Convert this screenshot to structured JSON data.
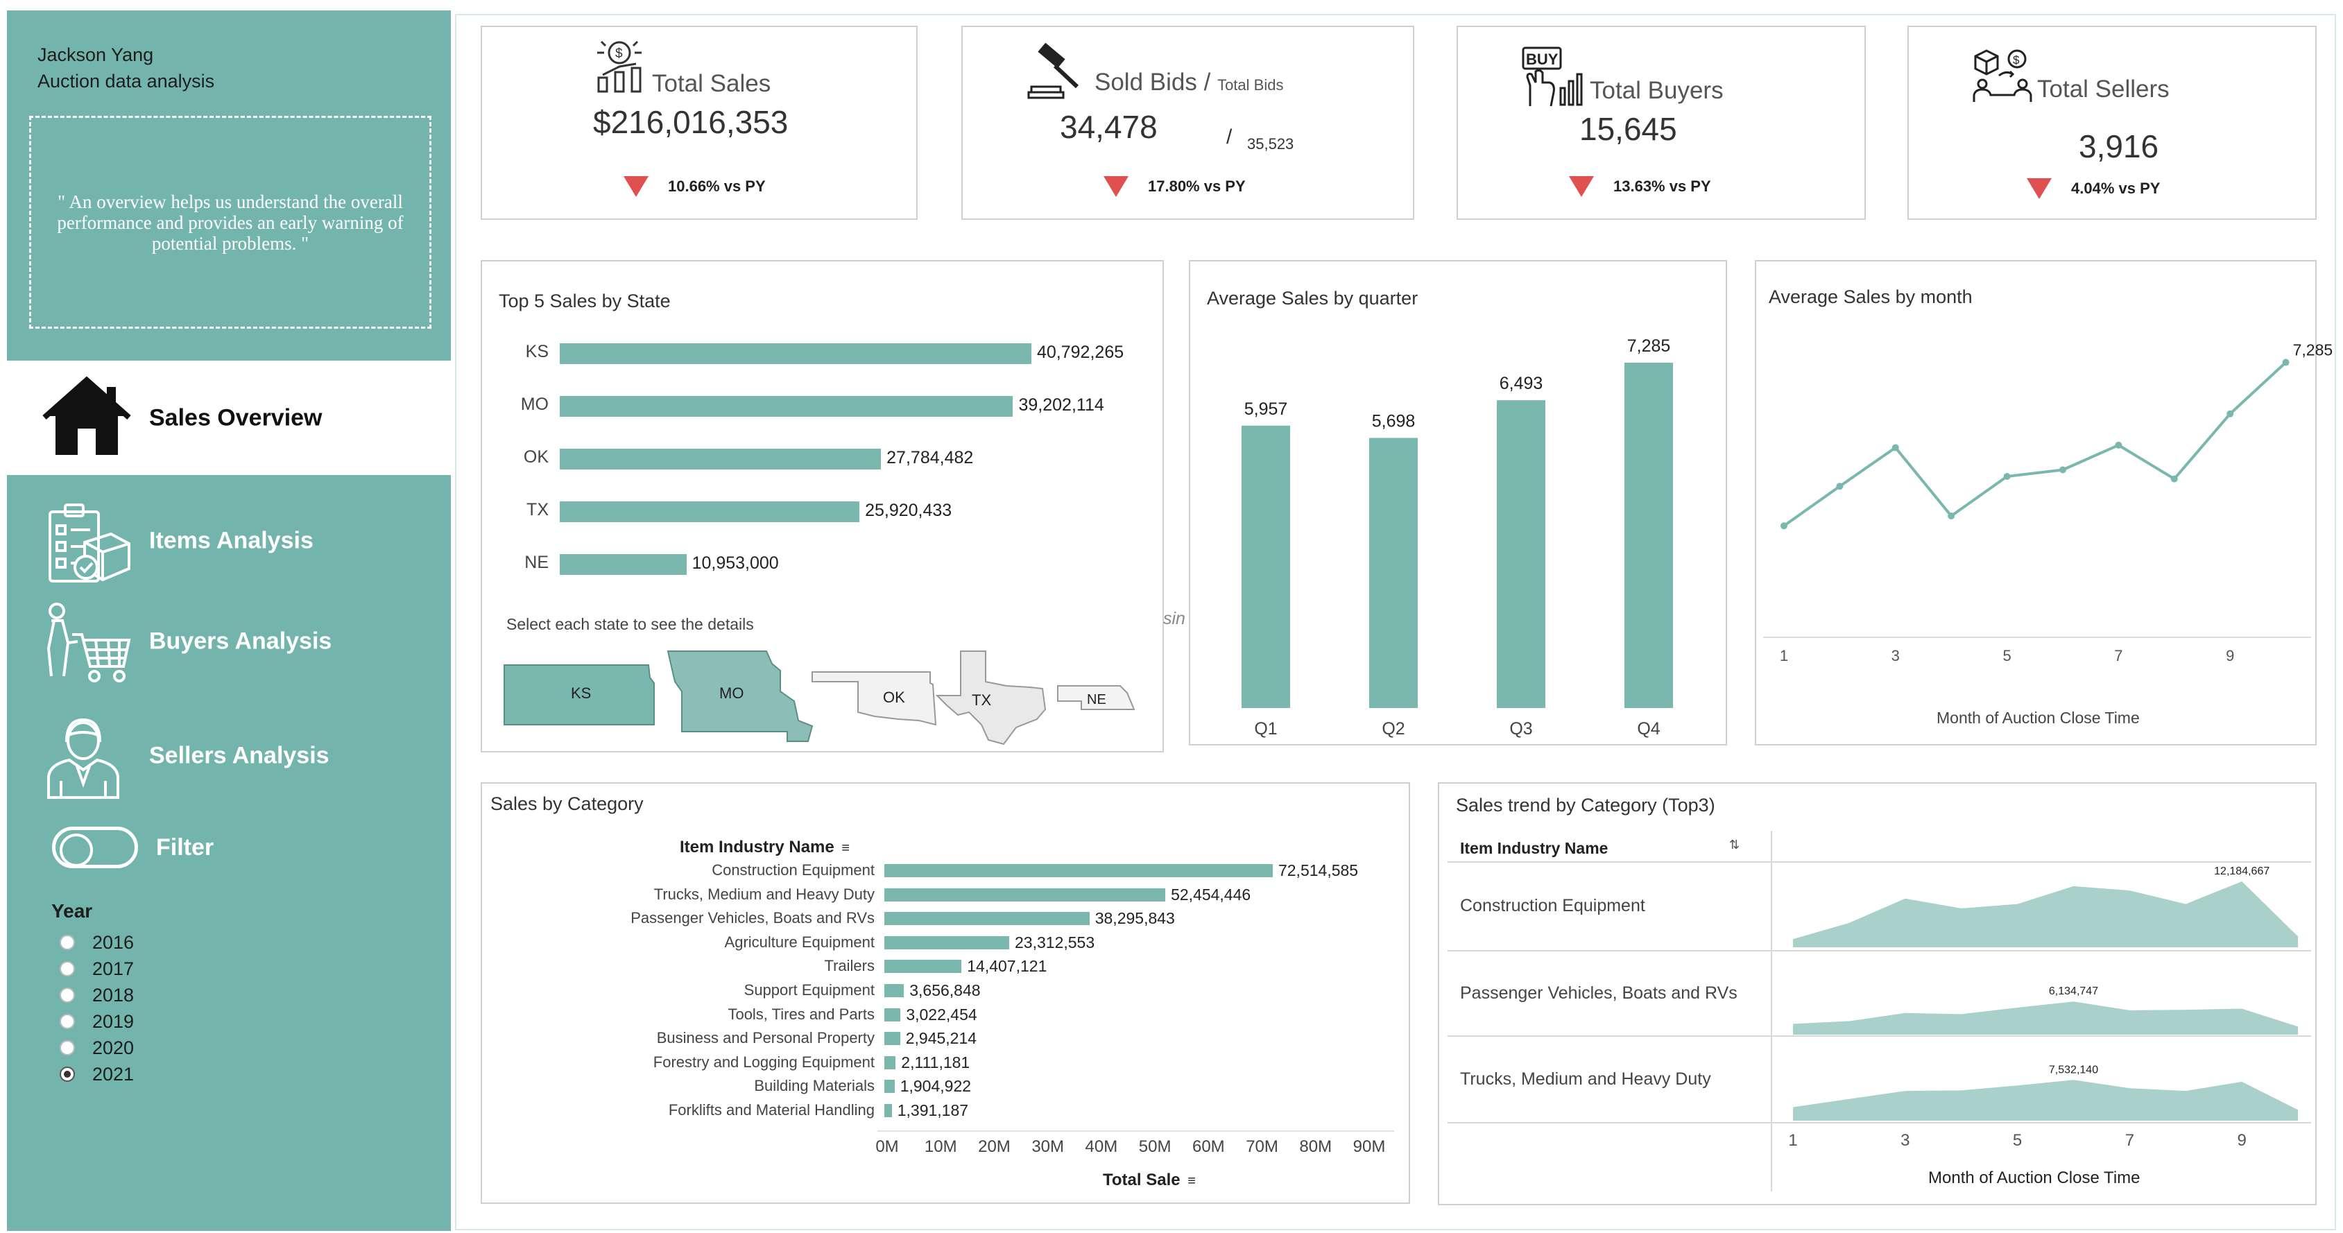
{
  "sidebar": {
    "author": "Jackson Yang",
    "subtitle": "Auction data analysis",
    "quote": "\" An overview helps us understand the overall performance and provides an early warning of potential problems. \"",
    "nav": [
      {
        "label": "Sales Overview",
        "icon": "house-icon",
        "active": true
      },
      {
        "label": "Items Analysis",
        "icon": "checklist-box-icon",
        "active": false
      },
      {
        "label": "Buyers Analysis",
        "icon": "shopping-cart-person-icon",
        "active": false
      },
      {
        "label": "Sellers Analysis",
        "icon": "seller-person-icon",
        "active": false
      }
    ],
    "filter_label": "Filter",
    "year_title": "Year",
    "years": [
      "2016",
      "2017",
      "2018",
      "2019",
      "2020",
      "2021"
    ],
    "selected_year": "2021"
  },
  "kpis": {
    "sales": {
      "title": "Total Sales",
      "value": "$216,016,353",
      "delta": "10.66% vs PY",
      "icon": "money-growth-icon"
    },
    "bids": {
      "title": "Sold Bids",
      "title_sep": " / ",
      "title_small": "Total Bids",
      "value": "34,478",
      "sub_value": "35,523",
      "sub_sep": "/",
      "delta": "17.80% vs PY",
      "icon": "gavel-icon"
    },
    "buyers": {
      "title": "Total Buyers",
      "value": "15,645",
      "delta": "13.63% vs PY",
      "icon": "buy-hand-icon"
    },
    "sellers": {
      "title": "Total Sellers",
      "value": "3,916",
      "delta": "4.04% vs PY",
      "icon": "seller-boxes-icon"
    },
    "delta_color": "#e05050"
  },
  "state_panel": {
    "title": "Top 5 Sales by State",
    "hint": "Select each state to see the details",
    "states": [
      {
        "code": "KS",
        "value": 40792265,
        "label": "40,792,265"
      },
      {
        "code": "MO",
        "value": 39202114,
        "label": "39,202,114"
      },
      {
        "code": "OK",
        "value": 27784482,
        "label": "27,784,482"
      },
      {
        "code": "TX",
        "value": 25920433,
        "label": "25,920,433"
      },
      {
        "code": "NE",
        "value": 10953000,
        "label": "10,953,000"
      }
    ],
    "edge_text": "sin"
  },
  "quarter_panel": {
    "title": "Average Sales by quarter",
    "categories": [
      "Q1",
      "Q2",
      "Q3",
      "Q4"
    ],
    "values": [
      5957,
      5698,
      6493,
      7285
    ],
    "labels": [
      "5,957",
      "5,698",
      "6,493",
      "7,285"
    ]
  },
  "month_panel": {
    "title": "Average Sales by month",
    "x": [
      1,
      2,
      3,
      4,
      5,
      6,
      7,
      8,
      9,
      10
    ],
    "values": [
      5300,
      5780,
      6250,
      5420,
      5900,
      5980,
      6280,
      5870,
      6660,
      7285
    ],
    "last_label": "7,285",
    "ticks": [
      "1",
      "3",
      "5",
      "7",
      "9"
    ],
    "xlabel": "Month of Auction Close Time"
  },
  "category_panel": {
    "title": "Sales by Category",
    "header": "Item Industry Name",
    "items": [
      {
        "name": "Construction Equipment",
        "value": 72514585,
        "label": "72,514,585"
      },
      {
        "name": "Trucks, Medium and Heavy Duty",
        "value": 52454446,
        "label": "52,454,446"
      },
      {
        "name": "Passenger Vehicles, Boats and RVs",
        "value": 38295843,
        "label": "38,295,843"
      },
      {
        "name": "Agriculture Equipment",
        "value": 23312553,
        "label": "23,312,553"
      },
      {
        "name": "Trailers",
        "value": 14407121,
        "label": "14,407,121"
      },
      {
        "name": "Support Equipment",
        "value": 3656848,
        "label": "3,656,848"
      },
      {
        "name": "Tools, Tires and Parts",
        "value": 3022454,
        "label": "3,022,454"
      },
      {
        "name": "Business and Personal Property",
        "value": 2945214,
        "label": "2,945,214"
      },
      {
        "name": "Forestry and Logging Equipment",
        "value": 2111181,
        "label": "2,111,181"
      },
      {
        "name": "Building Materials",
        "value": 1904922,
        "label": "1,904,922"
      },
      {
        "name": "Forklifts and Material Handling",
        "value": 1391187,
        "label": "1,391,187"
      }
    ],
    "axis_ticks": [
      "0M",
      "10M",
      "20M",
      "30M",
      "40M",
      "50M",
      "60M",
      "70M",
      "80M",
      "90M"
    ],
    "xmax": 90000000,
    "xlabel": "Total Sale"
  },
  "trend_panel": {
    "title": "Sales trend by Category (Top3)",
    "header": "Item Industry Name",
    "rows": [
      {
        "name": "Construction Equipment",
        "peak_label": "12,184,667",
        "values": [
          1.5,
          4.5,
          9.0,
          7.2,
          8.0,
          11.3,
          10.5,
          8.0,
          12.18,
          2.0
        ]
      },
      {
        "name": "Passenger Vehicles, Boats and RVs",
        "peak_label": "6,134,747",
        "values": [
          2.0,
          2.5,
          4.0,
          3.8,
          5.0,
          6.13,
          4.5,
          4.6,
          4.8,
          1.5
        ]
      },
      {
        "name": "Trucks, Medium and Heavy Duty",
        "peak_label": "7,532,140",
        "values": [
          2.5,
          4.0,
          5.5,
          5.6,
          6.5,
          7.53,
          6.0,
          5.5,
          7.2,
          2.0
        ]
      }
    ],
    "ticks": [
      "1",
      "3",
      "5",
      "7",
      "9"
    ],
    "xlabel": "Month of Auction Close Time"
  },
  "chart_color": "#7ab7ae",
  "sidebar_color": "#73b5ad"
}
